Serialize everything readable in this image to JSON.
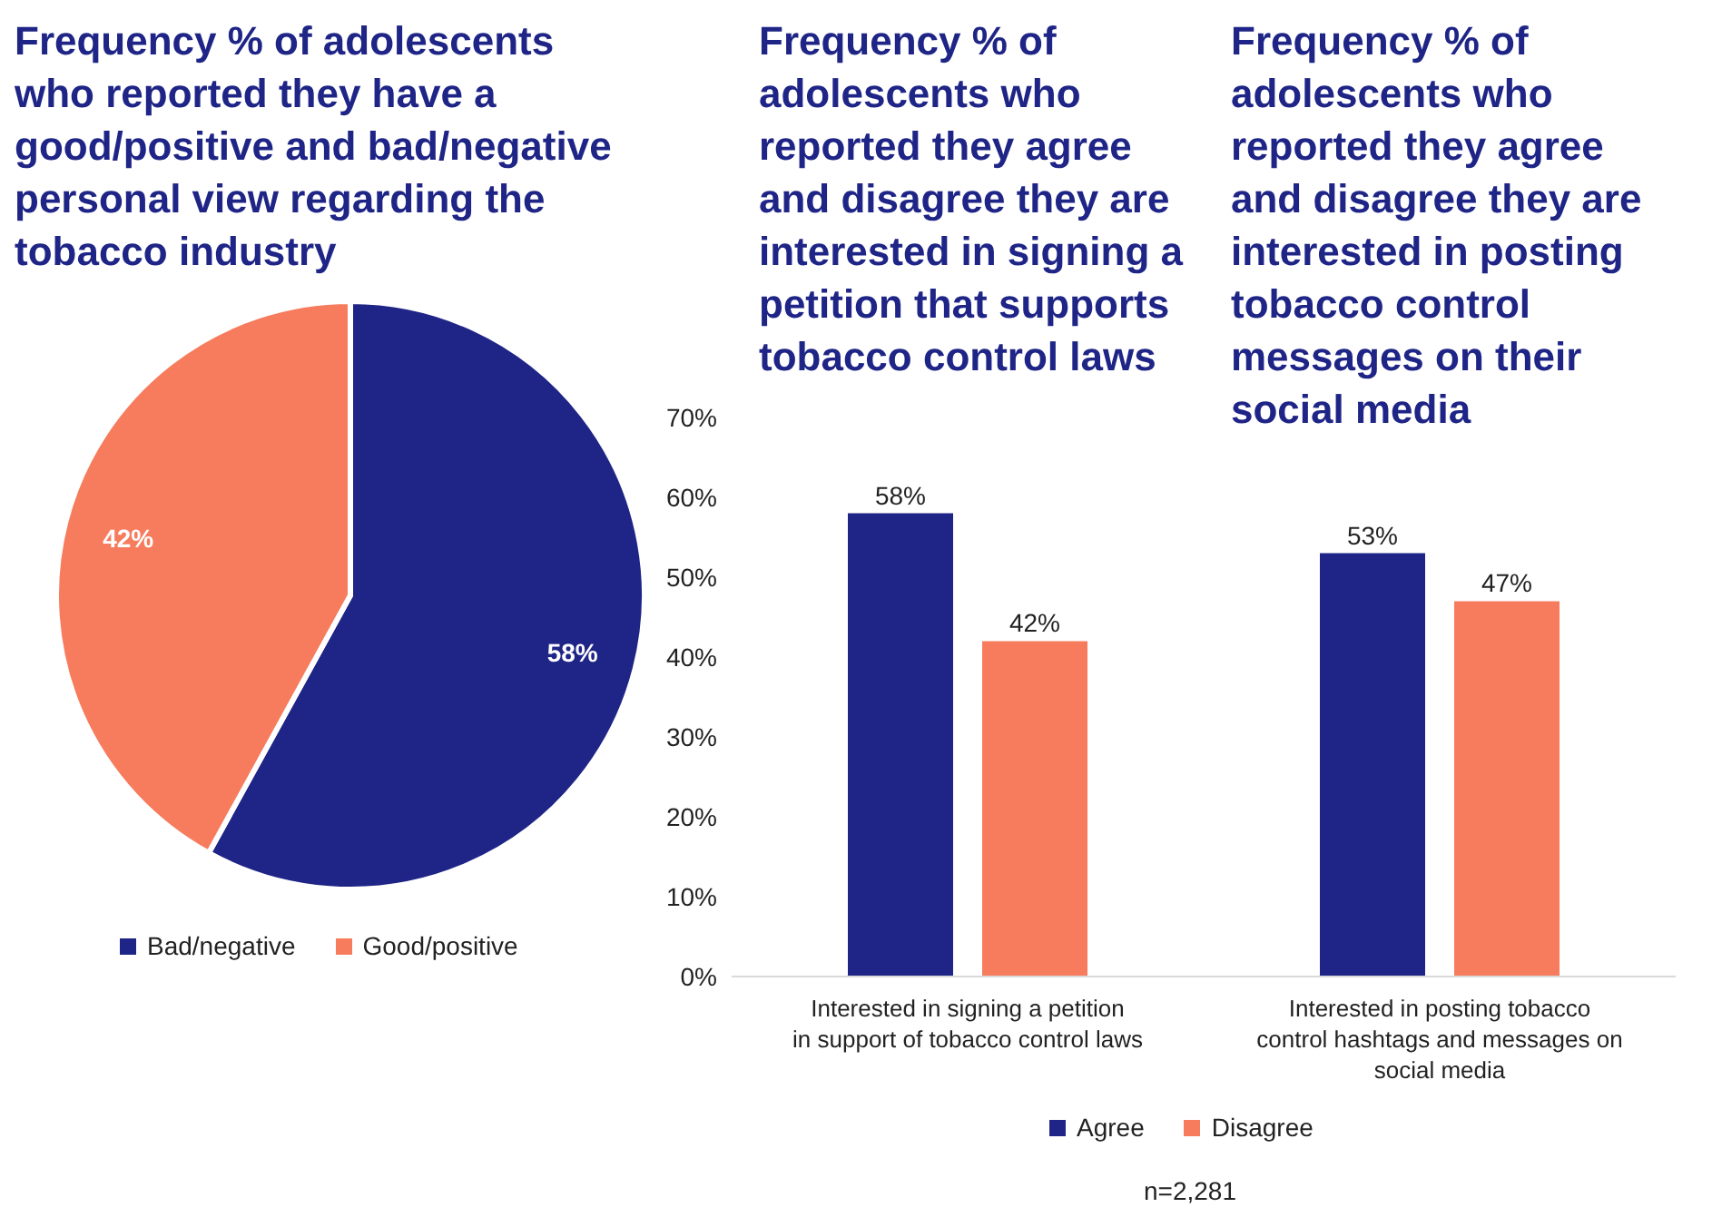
{
  "chart_data": [
    {
      "type": "pie",
      "title": "Frequency % of adolescents who reported they have a good/positive and bad/negative personal view regarding the tobacco industry",
      "categories": [
        "Bad/negative",
        "Good/positive"
      ],
      "values": [
        58,
        42
      ],
      "colors": [
        "#1f2586",
        "#f67c5d"
      ],
      "value_labels": [
        "58%",
        "42%"
      ],
      "legend": "bottom"
    },
    {
      "type": "bar",
      "title": "Frequency % of adolescents who reported they agree and disagree they are interested in signing a petition that supports tobacco control laws",
      "categories": [
        "Interested in signing a petition in support of tobacco control laws"
      ],
      "series": [
        {
          "name": "Agree",
          "color": "#1f2586",
          "values": [
            58
          ],
          "value_labels": [
            "58%"
          ]
        },
        {
          "name": "Disagree",
          "color": "#f67c5d",
          "values": [
            42
          ],
          "value_labels": [
            "42%"
          ]
        }
      ],
      "ylim": [
        0,
        70
      ],
      "yticks": [
        {
          "value": 0,
          "label": "0%"
        },
        {
          "value": 10,
          "label": "10%"
        },
        {
          "value": 20,
          "label": "20%"
        },
        {
          "value": 30,
          "label": "30%"
        },
        {
          "value": 40,
          "label": "40%"
        },
        {
          "value": 50,
          "label": "50%"
        },
        {
          "value": 60,
          "label": "60%"
        },
        {
          "value": 70,
          "label": "70%"
        }
      ],
      "grid": false,
      "legend": "bottom",
      "annotations": [
        "n=2,281"
      ]
    },
    {
      "type": "bar",
      "title": "Frequency % of adolescents who reported they agree and disagree they are interested in posting tobacco control messages on their social media",
      "categories": [
        "Interested in posting tobacco control hashtags and messages on social media"
      ],
      "series": [
        {
          "color": "#1f2586",
          "values": [
            53
          ],
          "value_labels": [
            "53%"
          ]
        },
        {
          "color": "#f67c5d",
          "values": [
            47
          ],
          "value_labels": [
            "47%"
          ]
        }
      ],
      "ylim": [
        0,
        70
      ],
      "tick_labels": "x",
      "grid": false
    }
  ]
}
